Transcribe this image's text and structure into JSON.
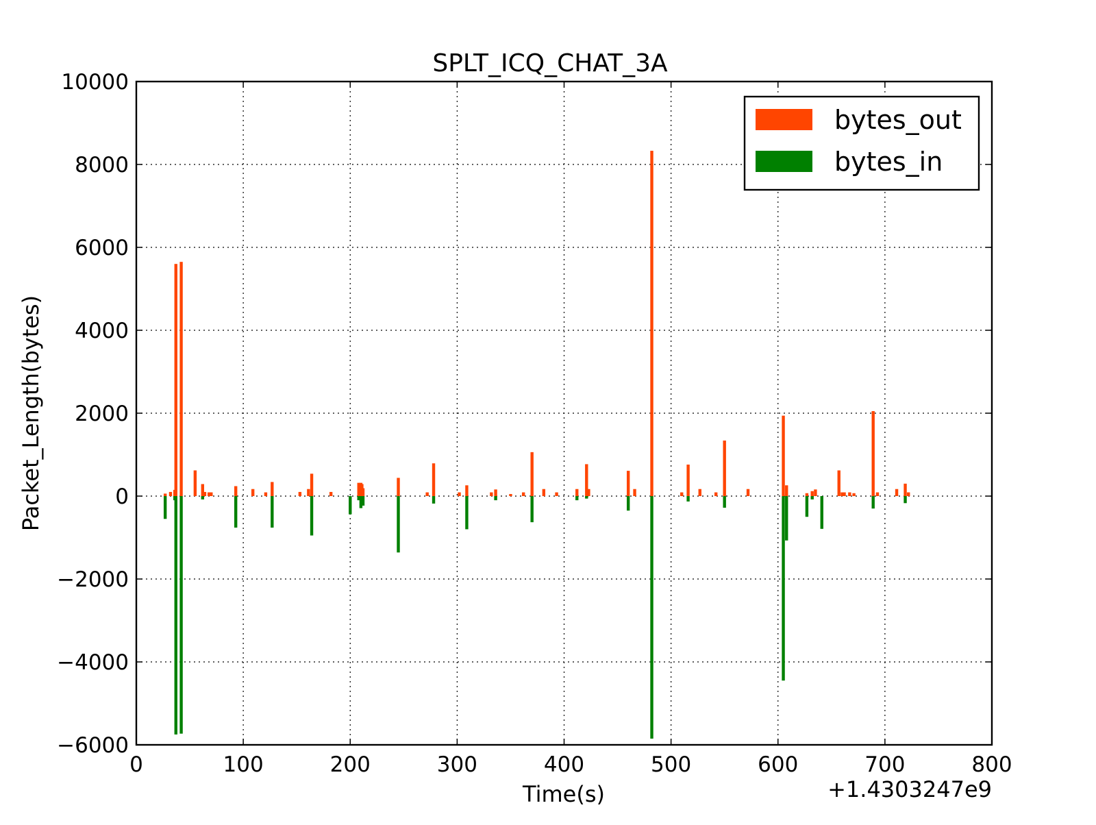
{
  "chart_data": {
    "type": "bar",
    "title": "SPLT_ICQ_CHAT_3A",
    "xlabel": "Time(s)",
    "ylabel": "Packet_Length(bytes)",
    "x_offset_label": "+1.4303247e9",
    "xlim": [
      0,
      800
    ],
    "ylim": [
      -6000,
      10000
    ],
    "xticks": [
      0,
      100,
      200,
      300,
      400,
      500,
      600,
      700,
      800
    ],
    "yticks": [
      -6000,
      -4000,
      -2000,
      0,
      2000,
      4000,
      6000,
      8000,
      10000
    ],
    "ytick_labels": [
      "−6000",
      "−4000",
      "−2000",
      "0",
      "2000",
      "4000",
      "6000",
      "8000",
      "10000"
    ],
    "grid": true,
    "legend_position": "top-right",
    "series": [
      {
        "name": "bytes_out",
        "color": "#ff4500",
        "x": [
          27,
          32,
          36,
          37,
          42,
          55,
          62,
          64,
          68,
          70,
          93,
          109,
          121,
          127,
          153,
          161,
          164,
          182,
          208,
          210,
          211,
          212,
          245,
          272,
          278,
          302,
          309,
          332,
          336,
          350,
          362,
          370,
          381,
          393,
          412,
          421,
          423,
          460,
          466,
          482,
          510,
          516,
          527,
          542,
          550,
          572,
          605,
          608,
          627,
          632,
          635,
          657,
          660,
          662,
          667,
          671,
          689,
          693,
          711,
          719,
          722
        ],
        "values": [
          60,
          100,
          150,
          5600,
          5650,
          620,
          290,
          100,
          90,
          90,
          240,
          170,
          90,
          340,
          100,
          170,
          540,
          100,
          320,
          320,
          290,
          190,
          440,
          90,
          790,
          90,
          260,
          90,
          160,
          50,
          90,
          1060,
          170,
          90,
          170,
          770,
          170,
          610,
          170,
          8330,
          90,
          760,
          170,
          90,
          1340,
          170,
          1940,
          260,
          70,
          120,
          160,
          620,
          90,
          90,
          90,
          70,
          2050,
          90,
          170,
          300,
          90
        ]
      },
      {
        "name": "bytes_in",
        "color": "#008000",
        "x": [
          27,
          36,
          37,
          42,
          62,
          93,
          127,
          164,
          200,
          208,
          210,
          212,
          245,
          278,
          309,
          336,
          370,
          412,
          421,
          460,
          482,
          516,
          550,
          605,
          608,
          627,
          632,
          641,
          689,
          719
        ],
        "values": [
          -550,
          -100,
          -5750,
          -5730,
          -80,
          -760,
          -760,
          -950,
          -440,
          -100,
          -290,
          -230,
          -1360,
          -180,
          -800,
          -100,
          -630,
          -100,
          -60,
          -350,
          -5850,
          -130,
          -280,
          -4450,
          -1070,
          -500,
          -80,
          -790,
          -300,
          -170
        ]
      }
    ]
  }
}
